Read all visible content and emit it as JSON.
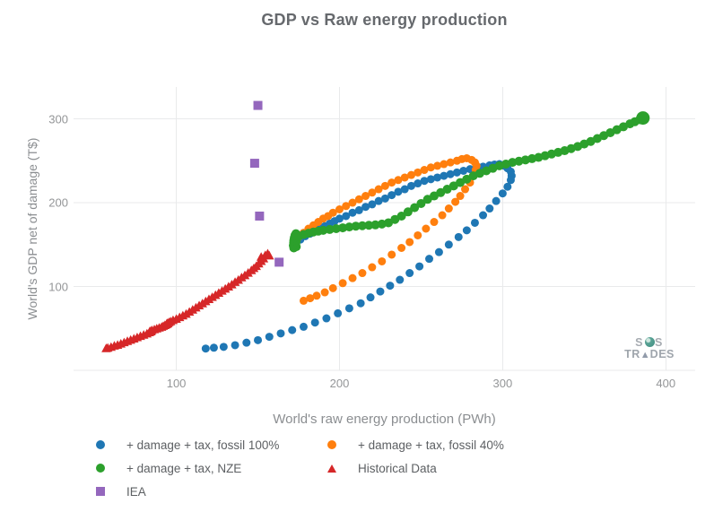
{
  "title": "GDP vs Raw energy production",
  "colors": {
    "background": "#ffffff",
    "grid": "#e9eaeb",
    "title_text": "#66696d",
    "axis_title_text": "#8b8e91",
    "tick_text": "#949698",
    "legend_text": "#5d6063",
    "series_blue": "#1f77b4",
    "series_orange": "#ff7f0e",
    "series_green": "#2ca02c",
    "series_red": "#d62728",
    "series_purple": "#9467bd",
    "watermark_text": "#a6abb1",
    "watermark_globe": "#4f9e8f"
  },
  "watermark": {
    "line1": "SoS",
    "line2": "TRADES"
  },
  "chart_data": {
    "type": "scatter",
    "title": "GDP vs Raw energy production",
    "xlabel": "World's raw energy production (PWh)",
    "ylabel": "World's GDP net of damage (T$)",
    "x_ticks": [
      100,
      200,
      300,
      400
    ],
    "y_ticks": [
      100,
      200,
      300
    ],
    "x_range": [
      37,
      418
    ],
    "y_range": [
      0,
      338
    ],
    "grid": true,
    "legend_position": "bottom",
    "series": [
      {
        "name": "+ damage + tax, fossil 100%",
        "color": "#1f77b4",
        "marker": "circle",
        "size": 9,
        "points": [
          [
            173,
            152
          ],
          [
            176,
            156
          ],
          [
            179,
            160
          ],
          [
            182,
            163
          ],
          [
            185,
            166
          ],
          [
            188,
            169
          ],
          [
            191,
            172
          ],
          [
            194,
            175
          ],
          [
            197,
            178
          ],
          [
            200,
            181
          ],
          [
            204,
            184
          ],
          [
            208,
            188
          ],
          [
            212,
            191
          ],
          [
            216,
            195
          ],
          [
            220,
            198
          ],
          [
            224,
            202
          ],
          [
            228,
            205
          ],
          [
            232,
            209
          ],
          [
            236,
            213
          ],
          [
            240,
            216
          ],
          [
            244,
            220
          ],
          [
            248,
            223
          ],
          [
            252,
            226
          ],
          [
            256,
            228
          ],
          [
            260,
            230
          ],
          [
            264,
            232
          ],
          [
            268,
            234
          ],
          [
            272,
            236
          ],
          [
            276,
            238
          ],
          [
            280,
            240
          ],
          [
            284,
            242
          ],
          [
            288,
            243
          ],
          [
            292,
            244.5
          ],
          [
            295,
            245.5
          ],
          [
            298,
            246
          ],
          [
            301,
            244
          ],
          [
            303,
            241
          ],
          [
            305,
            237
          ],
          [
            305.5,
            232
          ],
          [
            305,
            227
          ],
          [
            303,
            219
          ],
          [
            300,
            211
          ],
          [
            296,
            202
          ],
          [
            292,
            193
          ],
          [
            288,
            185
          ],
          [
            283,
            176
          ],
          [
            278,
            167
          ],
          [
            273,
            159
          ],
          [
            267,
            150
          ],
          [
            261,
            141
          ],
          [
            255,
            133
          ],
          [
            249,
            124
          ],
          [
            243,
            116
          ],
          [
            237,
            108
          ],
          [
            231,
            101
          ],
          [
            225,
            94
          ],
          [
            219,
            87
          ],
          [
            213,
            80
          ],
          [
            206,
            74
          ],
          [
            199,
            68
          ],
          [
            192,
            62
          ],
          [
            185,
            57
          ],
          [
            178,
            52
          ],
          [
            171,
            48
          ],
          [
            164,
            44
          ],
          [
            157,
            40
          ],
          [
            150,
            36
          ],
          [
            143,
            33
          ],
          [
            136,
            30
          ],
          [
            129,
            28
          ],
          [
            123,
            27
          ],
          [
            118,
            26
          ]
        ]
      },
      {
        "name": "+ damage + tax, fossil 40%",
        "color": "#ff7f0e",
        "marker": "circle",
        "size": 9,
        "points": [
          [
            172,
            153
          ],
          [
            175,
            159
          ],
          [
            178,
            164
          ],
          [
            181,
            169
          ],
          [
            184,
            173
          ],
          [
            187,
            177
          ],
          [
            190,
            181
          ],
          [
            193,
            184
          ],
          [
            196,
            188
          ],
          [
            200,
            192
          ],
          [
            204,
            196
          ],
          [
            208,
            200
          ],
          [
            212,
            204
          ],
          [
            216,
            208
          ],
          [
            220,
            212
          ],
          [
            224,
            216
          ],
          [
            228,
            220
          ],
          [
            232,
            224
          ],
          [
            236,
            227
          ],
          [
            240,
            230
          ],
          [
            244,
            233
          ],
          [
            248,
            236
          ],
          [
            252,
            239
          ],
          [
            256,
            242
          ],
          [
            260,
            244
          ],
          [
            264,
            246
          ],
          [
            268,
            248
          ],
          [
            272,
            250
          ],
          [
            275,
            252
          ],
          [
            278,
            253
          ],
          [
            281,
            251
          ],
          [
            283,
            248
          ],
          [
            284,
            244
          ],
          [
            283.5,
            239
          ],
          [
            282,
            232
          ],
          [
            280,
            224
          ],
          [
            277,
            216
          ],
          [
            274,
            208
          ],
          [
            271,
            201
          ],
          [
            267,
            193
          ],
          [
            263,
            185
          ],
          [
            258,
            177
          ],
          [
            253,
            169
          ],
          [
            248,
            161
          ],
          [
            243,
            153
          ],
          [
            238,
            146
          ],
          [
            232,
            138
          ],
          [
            226,
            130
          ],
          [
            220,
            123
          ],
          [
            214,
            116
          ],
          [
            208,
            110
          ],
          [
            202,
            104
          ],
          [
            196,
            98
          ],
          [
            191,
            93
          ],
          [
            186,
            89
          ],
          [
            182,
            86
          ],
          [
            178,
            83
          ]
        ]
      },
      {
        "name": "+ damage + tax, NZE",
        "color": "#2ca02c",
        "marker": "circle",
        "size": 10,
        "last_point_size": 15,
        "points": [
          [
            172,
            146
          ],
          [
            173.5,
            147.5
          ],
          [
            171.7,
            149
          ],
          [
            173.2,
            150.5
          ],
          [
            171.9,
            152
          ],
          [
            173.4,
            153.5
          ],
          [
            172,
            155
          ],
          [
            173.5,
            156.5
          ],
          [
            172.3,
            158
          ],
          [
            173.8,
            159.5
          ],
          [
            172.7,
            161
          ],
          [
            173.3,
            163
          ],
          [
            175,
            160
          ],
          [
            178,
            162
          ],
          [
            181,
            163.5
          ],
          [
            184,
            165
          ],
          [
            187,
            166
          ],
          [
            190,
            167
          ],
          [
            194,
            168
          ],
          [
            198,
            169
          ],
          [
            202,
            170
          ],
          [
            206,
            171
          ],
          [
            210,
            172
          ],
          [
            214,
            172.5
          ],
          [
            218,
            173
          ],
          [
            222,
            173.5
          ],
          [
            226,
            174.5
          ],
          [
            230,
            176
          ],
          [
            234,
            180
          ],
          [
            238,
            184
          ],
          [
            242,
            189
          ],
          [
            246,
            194
          ],
          [
            250,
            199
          ],
          [
            254,
            204
          ],
          [
            258,
            208
          ],
          [
            262,
            212
          ],
          [
            266,
            216
          ],
          [
            270,
            220
          ],
          [
            274,
            224
          ],
          [
            278,
            228
          ],
          [
            282,
            232
          ],
          [
            286,
            235
          ],
          [
            290,
            238
          ],
          [
            294,
            241
          ],
          [
            298,
            244
          ],
          [
            302,
            246
          ],
          [
            306,
            248
          ],
          [
            310,
            249.5
          ],
          [
            314,
            251
          ],
          [
            318,
            252.5
          ],
          [
            322,
            254
          ],
          [
            326,
            256
          ],
          [
            330,
            258
          ],
          [
            334,
            260
          ],
          [
            338,
            262
          ],
          [
            342,
            264.5
          ],
          [
            346,
            267
          ],
          [
            350,
            270
          ],
          [
            354,
            273
          ],
          [
            358,
            276.5
          ],
          [
            362,
            280
          ],
          [
            366,
            283.5
          ],
          [
            370,
            287
          ],
          [
            374,
            290.5
          ],
          [
            378,
            294
          ],
          [
            381,
            296.5
          ],
          [
            384,
            299
          ],
          [
            386,
            301
          ]
        ]
      },
      {
        "name": "Historical Data",
        "color": "#d62728",
        "marker": "triangle-up",
        "size": 9,
        "points": [
          [
            57,
            26
          ],
          [
            58,
            26.5
          ],
          [
            60,
            27.5
          ],
          [
            62,
            29
          ],
          [
            64,
            30
          ],
          [
            66,
            31.5
          ],
          [
            68,
            33
          ],
          [
            70,
            34.5
          ],
          [
            72,
            36
          ],
          [
            74,
            37.5
          ],
          [
            76,
            39
          ],
          [
            78,
            40.5
          ],
          [
            80,
            42
          ],
          [
            82,
            43.5
          ],
          [
            83.5,
            45
          ],
          [
            84.5,
            46
          ],
          [
            83.8,
            46.5
          ],
          [
            85,
            47.5
          ],
          [
            86.5,
            48.5
          ],
          [
            88,
            49.5
          ],
          [
            89.5,
            50.5
          ],
          [
            91,
            51.5
          ],
          [
            92,
            52.5
          ],
          [
            93,
            53.5
          ],
          [
            94,
            54.5
          ],
          [
            94.8,
            55.5
          ],
          [
            94.3,
            56
          ],
          [
            95.5,
            57
          ],
          [
            96.5,
            58
          ],
          [
            98,
            59.5
          ],
          [
            100,
            61
          ],
          [
            102,
            63
          ],
          [
            104,
            65
          ],
          [
            106,
            67
          ],
          [
            108,
            69.5
          ],
          [
            110,
            72
          ],
          [
            112,
            74.5
          ],
          [
            114,
            77
          ],
          [
            116,
            79.5
          ],
          [
            118,
            82
          ],
          [
            120,
            84.5
          ],
          [
            122,
            87
          ],
          [
            124,
            89.5
          ],
          [
            126,
            92
          ],
          [
            128,
            94.5
          ],
          [
            130,
            97
          ],
          [
            132,
            99.5
          ],
          [
            134,
            102
          ],
          [
            136,
            105
          ],
          [
            138,
            107.5
          ],
          [
            140,
            110.5
          ],
          [
            142,
            113
          ],
          [
            144,
            116
          ],
          [
            146,
            119
          ],
          [
            147.5,
            121.5
          ],
          [
            149,
            124
          ],
          [
            150.5,
            127
          ],
          [
            152,
            130
          ],
          [
            153.5,
            133
          ],
          [
            152,
            135
          ],
          [
            154.5,
            137
          ],
          [
            156,
            139
          ],
          [
            157,
            136.5
          ]
        ]
      },
      {
        "name": "IEA",
        "color": "#9467bd",
        "marker": "square",
        "size": 10,
        "points": [
          [
            150,
            316
          ],
          [
            148,
            247
          ],
          [
            151,
            184
          ],
          [
            163,
            129
          ]
        ]
      }
    ]
  }
}
